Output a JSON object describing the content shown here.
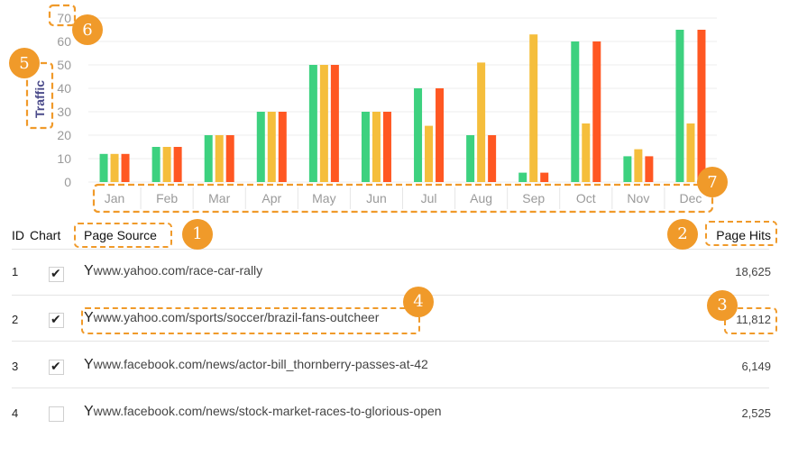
{
  "chart_data": {
    "type": "bar",
    "categories": [
      "Jan",
      "Feb",
      "Mar",
      "Apr",
      "May",
      "Jun",
      "Jul",
      "Aug",
      "Sep",
      "Oct",
      "Nov",
      "Dec"
    ],
    "series": [
      {
        "color": "#3dd17f",
        "values": [
          12,
          15,
          20,
          30,
          50,
          30,
          40,
          20,
          4,
          60,
          11,
          65
        ]
      },
      {
        "color": "#f5be3c",
        "values": [
          12,
          15,
          20,
          30,
          50,
          30,
          24,
          51,
          63,
          25,
          14,
          25
        ]
      },
      {
        "color": "#ff5722",
        "values": [
          12,
          15,
          20,
          30,
          50,
          30,
          40,
          20,
          4,
          60,
          11,
          65
        ]
      }
    ],
    "ylabel": "Traffic",
    "ylim": [
      0,
      70
    ],
    "yticks": [
      0,
      10,
      20,
      30,
      40,
      50,
      60,
      70
    ],
    "grid": true
  },
  "table": {
    "headers": {
      "id": "ID",
      "chart": "Chart",
      "source": "Page Source",
      "hits": "Page Hits"
    },
    "rows": [
      {
        "id": "1",
        "checked": true,
        "source_icon": "Y",
        "source": "www.yahoo.com/race-car-rally",
        "hits": "18,625"
      },
      {
        "id": "2",
        "checked": true,
        "source_icon": "Y",
        "source": "www.yahoo.com/sports/soccer/brazil-fans-outcheer",
        "hits": "11,812"
      },
      {
        "id": "3",
        "checked": true,
        "source_icon": "Y",
        "source": "www.facebook.com/news/actor-bill_thornberry-passes-at-42",
        "hits": "6,149"
      },
      {
        "id": "4",
        "checked": false,
        "source_icon": "Y",
        "source": "www.facebook.com/news/stock-market-races-to-glorious-open",
        "hits": "2,525"
      }
    ]
  },
  "annotations": [
    "1",
    "2",
    "3",
    "4",
    "5",
    "6",
    "7"
  ],
  "colors": {
    "annotation": "#f09a2a",
    "grid": "#ececec"
  }
}
